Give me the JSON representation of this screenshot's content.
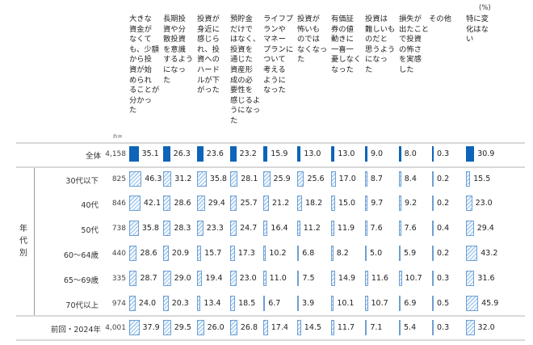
{
  "chart_data": {
    "type": "bar",
    "unit_label": "(%)",
    "n_label": "n=",
    "group_label": "年\n代\n別",
    "categories": [
      "大きな\n資金が\nなくて\nも、少額\nから投\n資が始\nめられ\nることが\n分かっ\nた",
      "長期投\n資や分\n散投資\nを意識\nするよう\nになっ\nた",
      "投資が\n身近に\n感じら\nれ、投\n資への\nハード\nルが下\nがった",
      "預貯金\nだけで\nはなく、\n投資を\n通じた\n資産形\n成の必\n要性を\n感じるよ\nうになっ\nた",
      "ライフプ\nランや\nマネー\nプランに\nついて\n考える\nように\nなった",
      "投資が\n怖いも\nのでは\nなくなっ\nた",
      "有価証\n券の値\n動きに\n一喜一\n憂しなく\nなった",
      "投資は\n難しいも\nのだと\n思うよう\nになっ\nた",
      "損失が\n出たこと\nで投資\nの怖さ\nを実感\nした",
      "その他",
      "特に変\n化はな\nい"
    ],
    "rows": [
      {
        "label": "全体",
        "n": "4,158",
        "style": "solid",
        "values": [
          35.1,
          26.3,
          23.6,
          23.2,
          15.9,
          13.0,
          13.0,
          9.0,
          8.0,
          0.3,
          30.9
        ]
      },
      {
        "label": "30代以下",
        "n": "825",
        "style": "hatch",
        "values": [
          46.3,
          31.2,
          35.8,
          28.1,
          25.9,
          25.6,
          17.0,
          8.7,
          8.4,
          0.2,
          15.5
        ]
      },
      {
        "label": "40代",
        "n": "846",
        "style": "hatch",
        "values": [
          42.1,
          28.6,
          29.4,
          25.7,
          21.2,
          18.2,
          15.0,
          9.7,
          9.2,
          0.2,
          23.0
        ]
      },
      {
        "label": "50代",
        "n": "738",
        "style": "hatch",
        "values": [
          35.8,
          28.3,
          23.3,
          24.7,
          16.4,
          11.2,
          11.9,
          7.6,
          7.6,
          0.4,
          29.4
        ]
      },
      {
        "label": "60〜64歳",
        "n": "440",
        "style": "hatch",
        "values": [
          28.6,
          20.9,
          15.7,
          17.3,
          10.2,
          6.8,
          8.2,
          5.0,
          5.9,
          0.2,
          43.2
        ]
      },
      {
        "label": "65〜69歳",
        "n": "335",
        "style": "hatch",
        "values": [
          28.7,
          29.0,
          19.4,
          23.0,
          11.0,
          7.5,
          14.9,
          11.6,
          10.7,
          0.3,
          31.6
        ]
      },
      {
        "label": "70代以上",
        "n": "974",
        "style": "hatch",
        "values": [
          24.0,
          20.3,
          13.4,
          18.5,
          6.7,
          3.9,
          10.1,
          10.7,
          6.9,
          0.5,
          45.9
        ]
      },
      {
        "label": "前回・2024年",
        "n": "4,001",
        "style": "hatch",
        "values": [
          37.9,
          29.5,
          26.0,
          26.8,
          17.4,
          14.5,
          11.7,
          7.1,
          5.4,
          0.3,
          32.0
        ]
      }
    ],
    "colors": {
      "solid": "#0d64b8",
      "hatch": "#a9cdf0",
      "hatch_border": "#6e9fd3"
    }
  }
}
